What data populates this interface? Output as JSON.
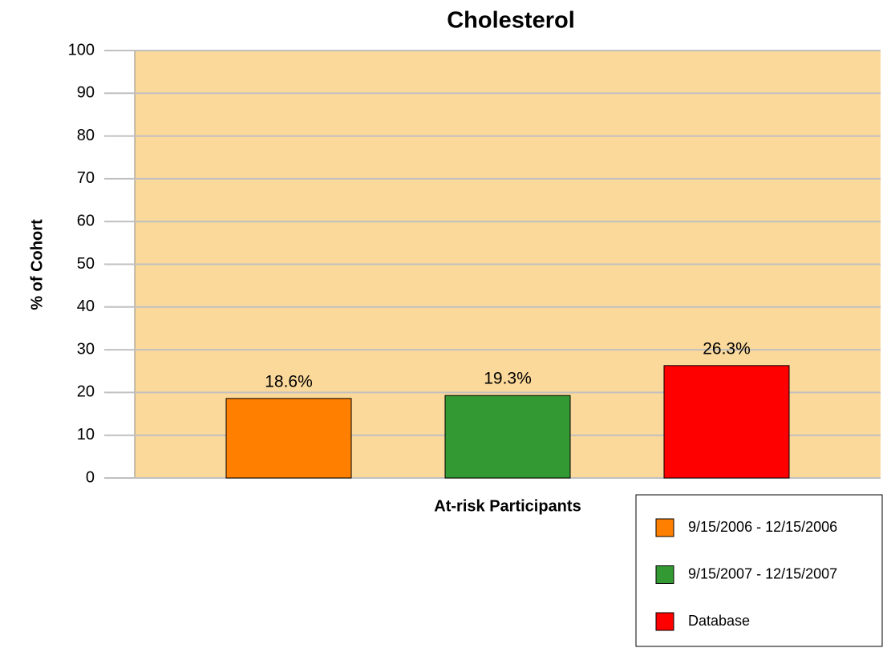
{
  "chart_data": {
    "type": "bar",
    "title": "Cholesterol",
    "y_label": "% of Cohort",
    "categories": [
      "At-risk Participants"
    ],
    "series": [
      {
        "name": "9/15/2006 - 12/15/2006",
        "color": "#ff8000",
        "values": [
          18.6
        ],
        "value_labels": [
          "18.6%"
        ]
      },
      {
        "name": "9/15/2007 - 12/15/2007",
        "color": "#339933",
        "values": [
          19.3
        ],
        "value_labels": [
          "19.3%"
        ]
      },
      {
        "name": "Database",
        "color": "#ff0000",
        "values": [
          26.3
        ],
        "value_labels": [
          "26.3%"
        ]
      }
    ],
    "ylim": [
      0,
      100
    ],
    "yticks": [
      0,
      10,
      20,
      30,
      40,
      50,
      60,
      70,
      80,
      90,
      100
    ],
    "grid": true,
    "legend": "bottom-right",
    "plot_background": "#fbd99b"
  }
}
